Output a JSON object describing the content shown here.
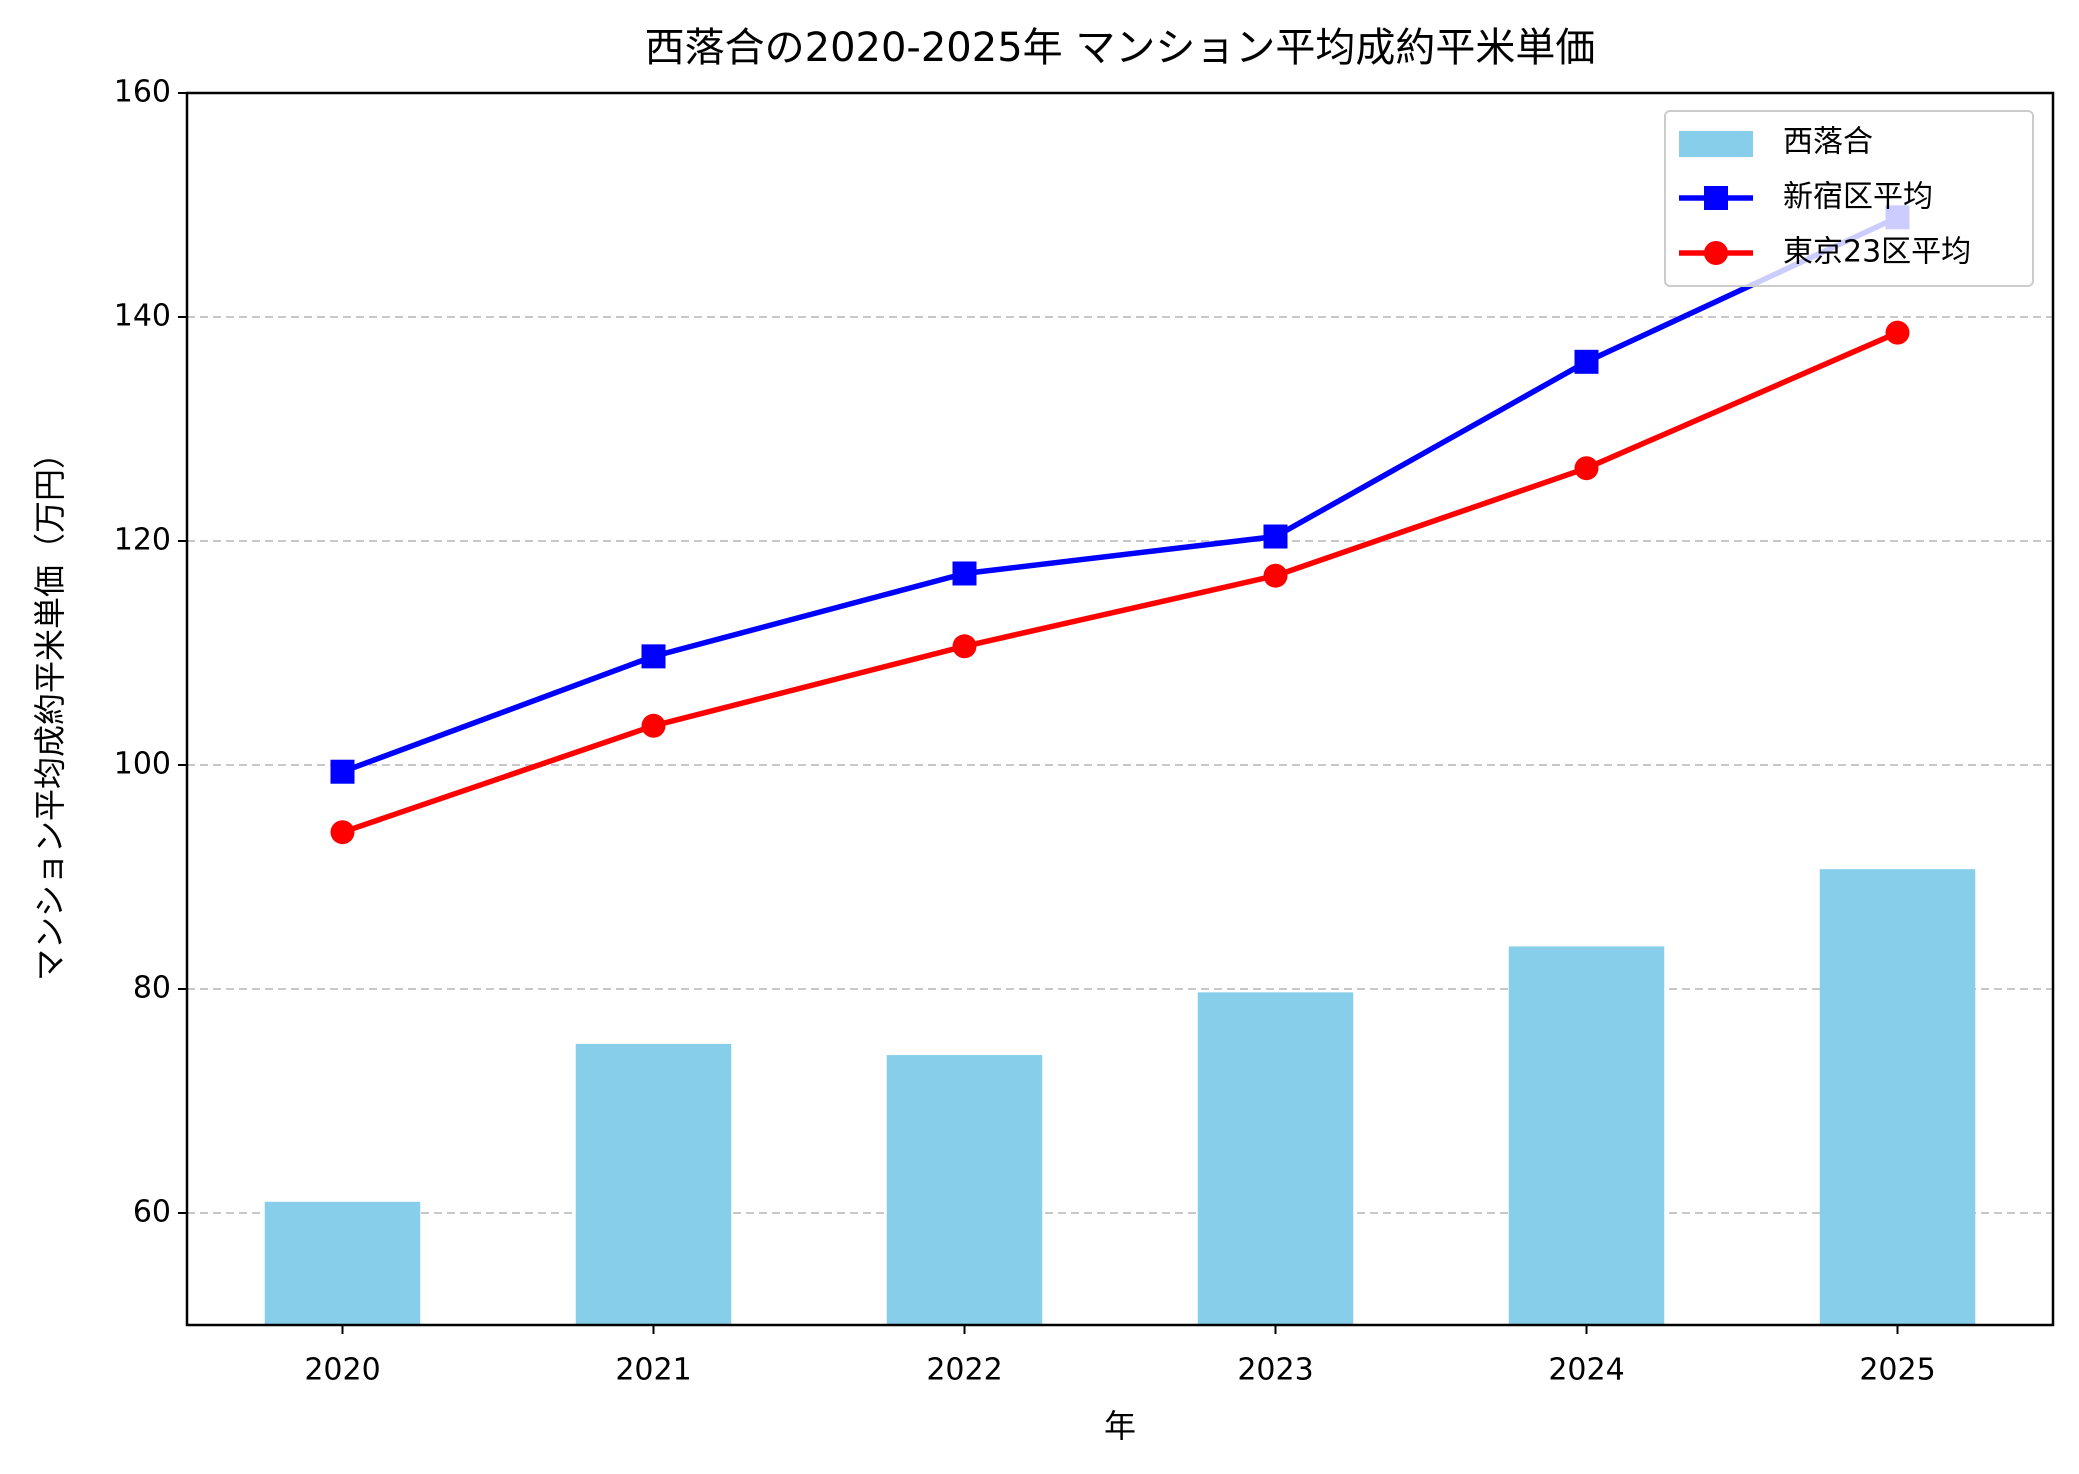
{
  "chart_data": {
    "type": "bar-line",
    "title": "西落合の2020-2025年 マンション平均成約平米単価",
    "x_label": "年",
    "y_label": "マンション平均成約平米単価（万円）",
    "categories": [
      "2020",
      "2021",
      "2022",
      "2023",
      "2024",
      "2025"
    ],
    "series": [
      {
        "name": "西落合",
        "type": "bar",
        "color": "#87ceeb",
        "values": [
          61.0,
          75.1,
          74.1,
          79.7,
          83.8,
          90.7
        ]
      },
      {
        "name": "新宿区平均",
        "type": "line",
        "marker": "square",
        "color": "#0000ff",
        "values": [
          99.4,
          109.7,
          117.1,
          120.4,
          136.0,
          148.9
        ]
      },
      {
        "name": "東京23区平均",
        "type": "line",
        "marker": "circle",
        "color": "#ff0000",
        "values": [
          94.0,
          103.5,
          110.6,
          116.9,
          126.5,
          138.6
        ]
      }
    ],
    "ylim": [
      50,
      160
    ],
    "yticks": [
      60,
      80,
      100,
      120,
      140,
      160
    ],
    "grid": true,
    "legend": "upper right"
  }
}
